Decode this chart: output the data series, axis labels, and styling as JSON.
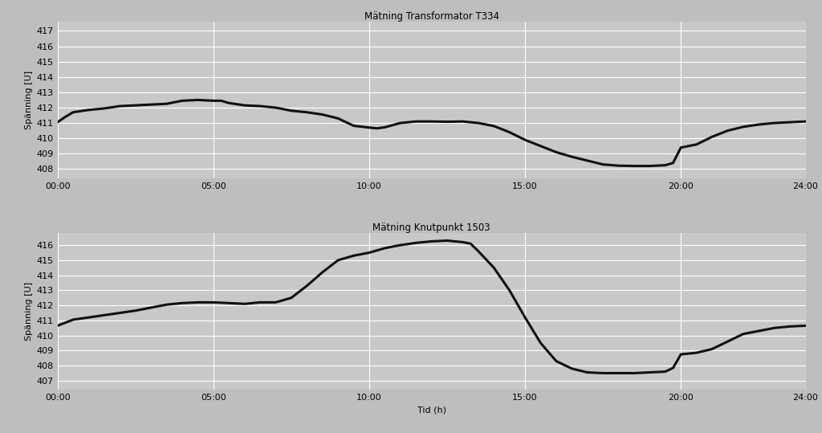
{
  "title1": "Mätning Transformator T334",
  "title2": "Mätning Knutpunkt 1503",
  "xlabel": "Tid (h)",
  "ylabel": "Spänning [U]",
  "background_color": "#c8c8c8",
  "fig_background_color": "#bebebe",
  "line_color": "#111111",
  "line_width": 2.2,
  "x_ticks": [
    0,
    5,
    10,
    15,
    20,
    24
  ],
  "x_tick_labels": [
    "00:00",
    "05:00",
    "10:00",
    "15:00",
    "20:00",
    "24:00"
  ],
  "plot1": {
    "ylim": [
      407.4,
      417.6
    ],
    "yticks": [
      408,
      409,
      410,
      411,
      412,
      413,
      414,
      415,
      416,
      417
    ],
    "x": [
      0,
      0.25,
      0.5,
      1.0,
      1.5,
      2.0,
      2.5,
      3.0,
      3.5,
      4.0,
      4.5,
      5.0,
      5.25,
      5.5,
      6.0,
      6.5,
      7.0,
      7.5,
      8.0,
      8.5,
      9.0,
      9.5,
      10.0,
      10.25,
      10.5,
      11.0,
      11.5,
      12.0,
      12.5,
      13.0,
      13.5,
      14.0,
      14.5,
      15.0,
      15.5,
      16.0,
      16.5,
      17.0,
      17.5,
      18.0,
      18.5,
      19.0,
      19.5,
      19.75,
      20.0,
      20.5,
      21.0,
      21.5,
      22.0,
      22.5,
      23.0,
      23.5,
      24.0
    ],
    "y": [
      411.05,
      411.4,
      411.7,
      411.85,
      411.95,
      412.1,
      412.15,
      412.2,
      412.25,
      412.45,
      412.5,
      412.45,
      412.45,
      412.3,
      412.15,
      412.1,
      412.0,
      411.8,
      411.7,
      411.55,
      411.3,
      410.82,
      410.7,
      410.65,
      410.72,
      411.0,
      411.1,
      411.1,
      411.08,
      411.1,
      411.0,
      410.8,
      410.4,
      409.9,
      409.5,
      409.1,
      408.8,
      408.55,
      408.3,
      408.22,
      408.2,
      408.2,
      408.25,
      408.4,
      409.4,
      409.6,
      410.1,
      410.5,
      410.75,
      410.9,
      411.0,
      411.05,
      411.1
    ]
  },
  "plot2": {
    "ylim": [
      406.4,
      416.8
    ],
    "yticks": [
      407,
      408,
      409,
      410,
      411,
      412,
      413,
      414,
      415,
      416
    ],
    "x": [
      0,
      0.25,
      0.5,
      1.0,
      1.5,
      2.0,
      2.5,
      3.0,
      3.5,
      4.0,
      4.5,
      5.0,
      5.5,
      6.0,
      6.25,
      6.5,
      7.0,
      7.5,
      8.0,
      8.5,
      9.0,
      9.5,
      10.0,
      10.5,
      11.0,
      11.5,
      12.0,
      12.5,
      13.0,
      13.25,
      13.5,
      14.0,
      14.5,
      15.0,
      15.5,
      16.0,
      16.5,
      17.0,
      17.5,
      18.0,
      18.5,
      19.0,
      19.5,
      19.75,
      20.0,
      20.5,
      21.0,
      21.5,
      22.0,
      22.5,
      23.0,
      23.5,
      24.0
    ],
    "y": [
      410.65,
      410.85,
      411.05,
      411.2,
      411.35,
      411.5,
      411.65,
      411.85,
      412.05,
      412.15,
      412.2,
      412.2,
      412.15,
      412.1,
      412.15,
      412.2,
      412.2,
      412.5,
      413.3,
      414.2,
      415.0,
      415.3,
      415.5,
      415.8,
      416.0,
      416.15,
      416.25,
      416.3,
      416.2,
      416.1,
      415.6,
      414.5,
      413.0,
      411.2,
      409.5,
      408.3,
      407.8,
      407.55,
      407.5,
      407.5,
      407.5,
      407.55,
      407.6,
      407.85,
      408.75,
      408.85,
      409.1,
      409.6,
      410.1,
      410.3,
      410.5,
      410.6,
      410.65
    ]
  }
}
